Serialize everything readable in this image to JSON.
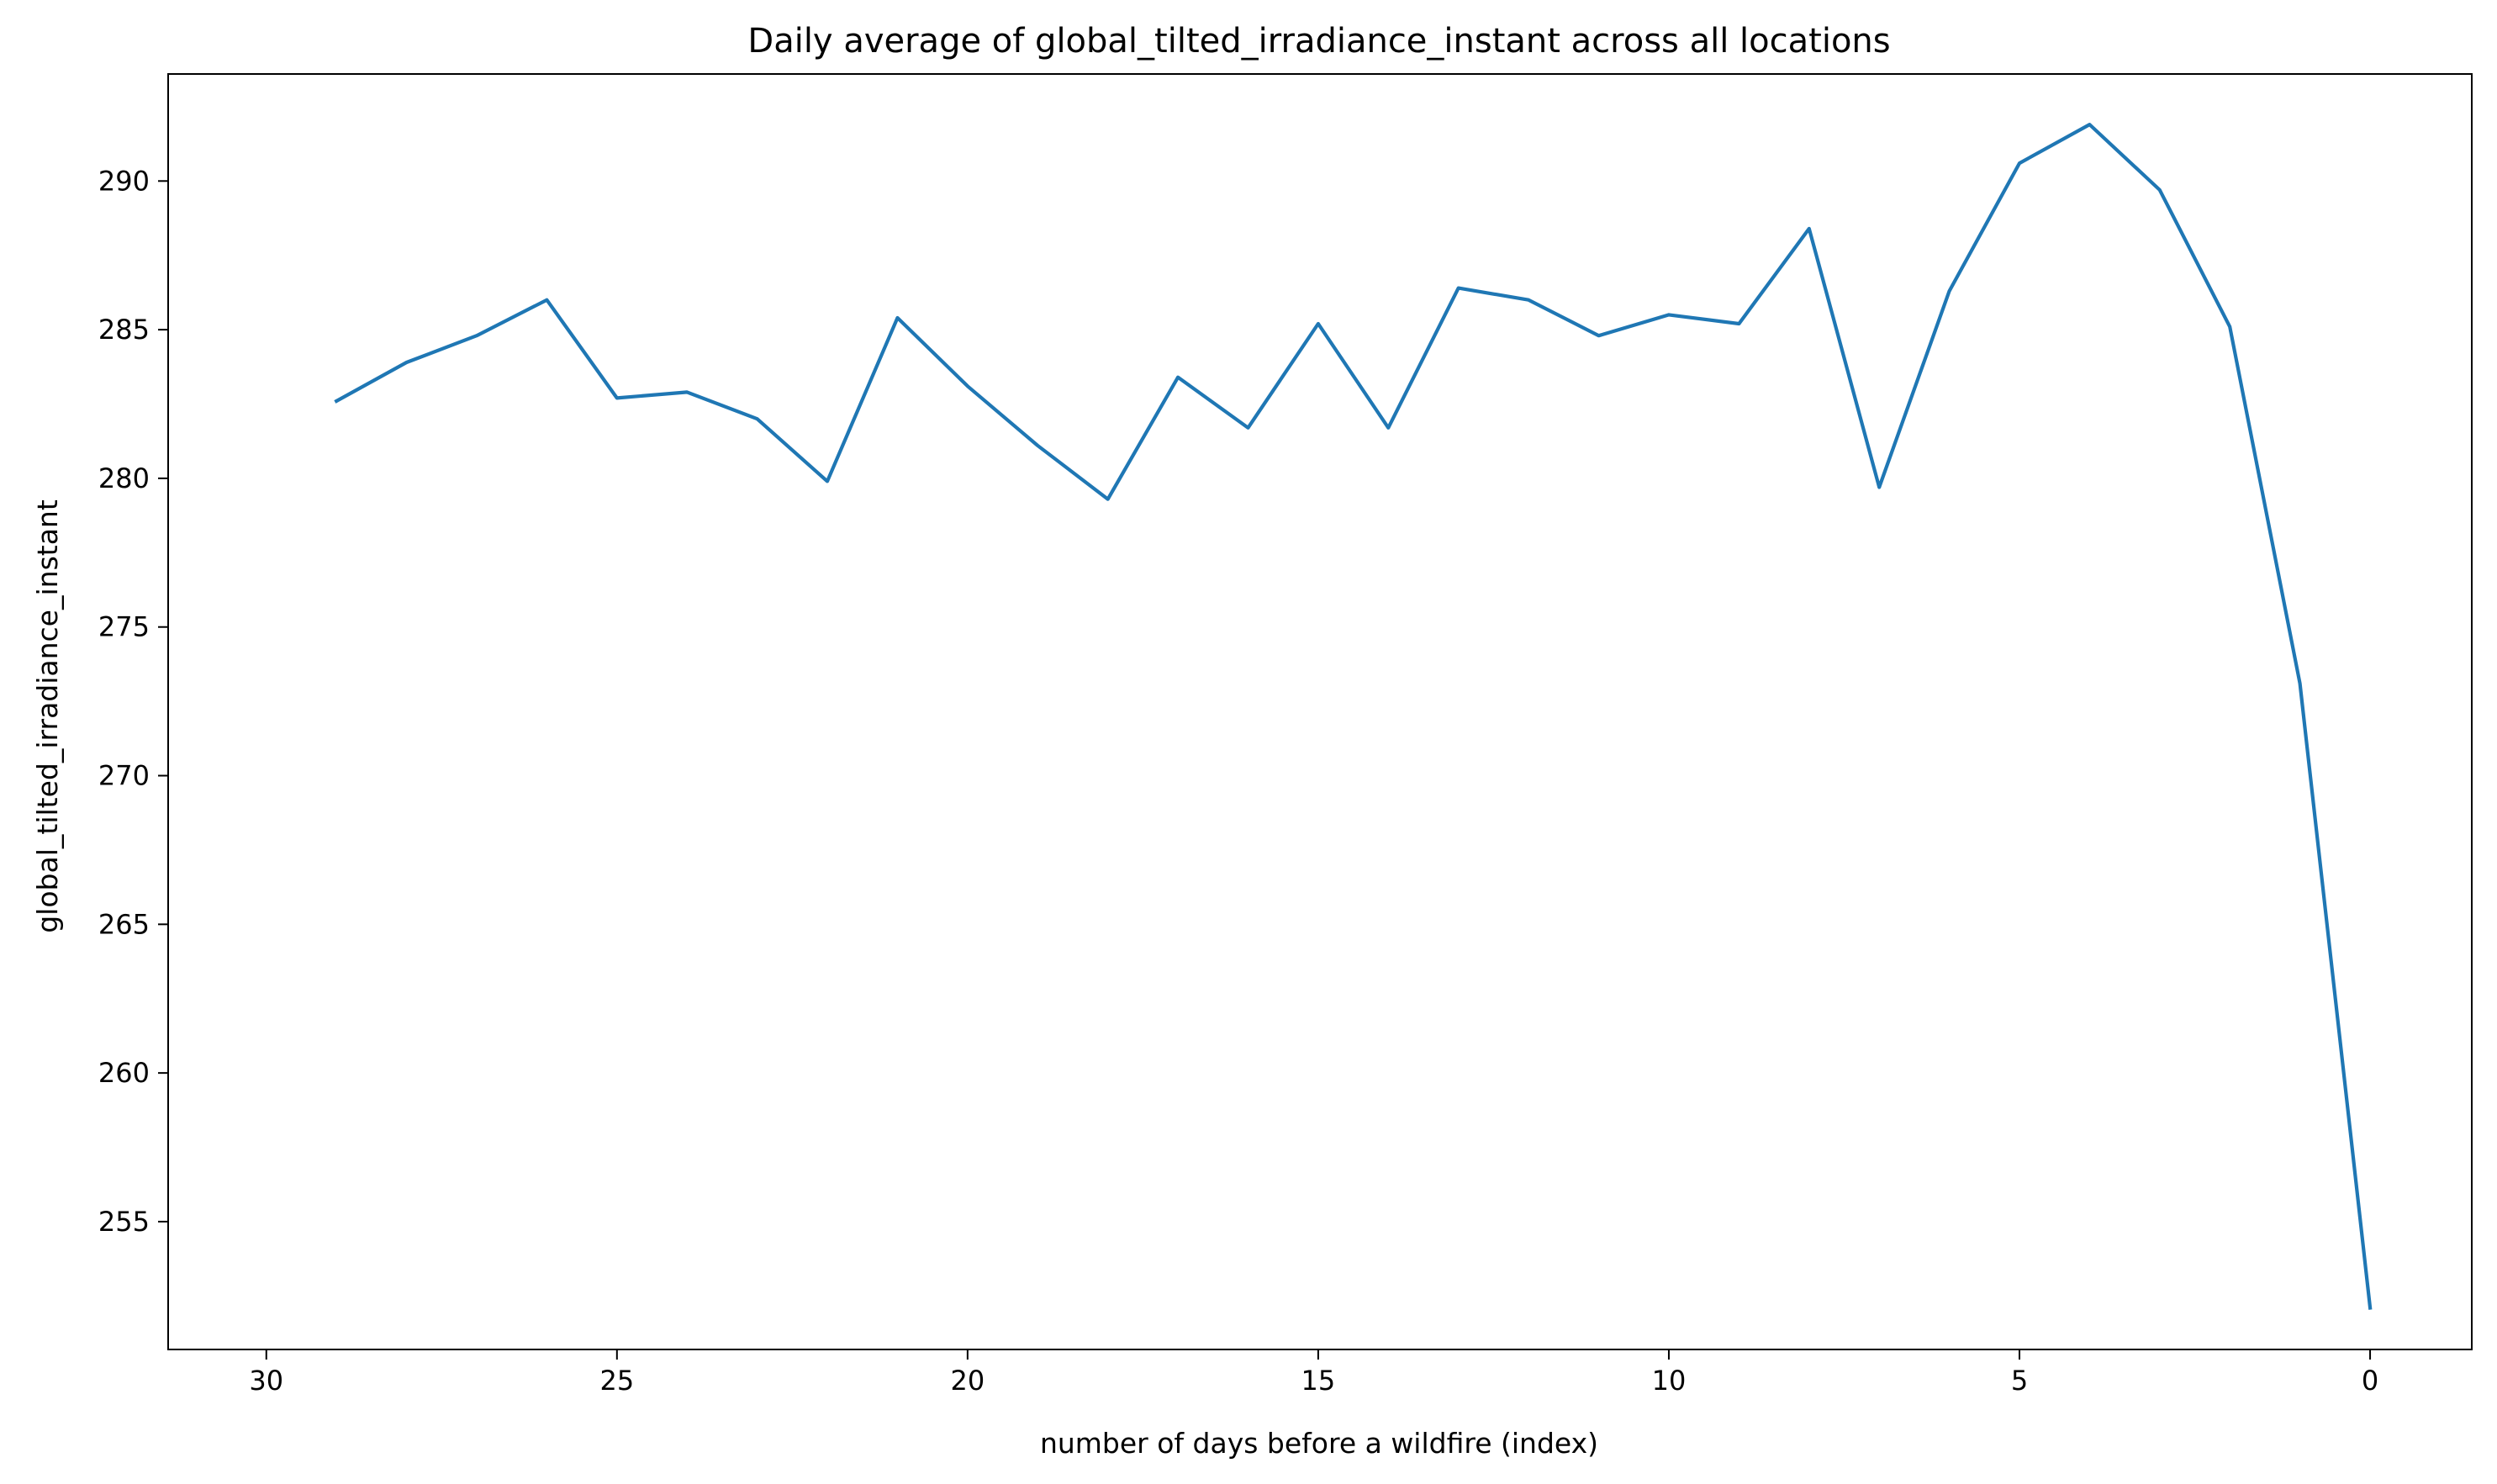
{
  "chart_data": {
    "type": "line",
    "title": "Daily average of global_tilted_irradiance_instant across all locations",
    "xlabel": "number of days before a wildfire (index)",
    "ylabel": "global_tilted_irradiance_instant",
    "x_inverted": true,
    "xlim": [
      31.4,
      -1.45
    ],
    "ylim": [
      250.7,
      293.6
    ],
    "xticks": [
      30,
      25,
      20,
      15,
      10,
      5,
      0
    ],
    "yticks": [
      255,
      260,
      265,
      270,
      275,
      280,
      285,
      290
    ],
    "grid": false,
    "series": [
      {
        "color": "#1f77b4",
        "x": [
          29,
          28,
          27,
          26,
          25,
          24,
          23,
          22,
          21,
          20,
          19,
          18,
          17,
          16,
          15,
          14,
          13,
          12,
          11,
          10,
          9,
          8,
          7,
          6,
          5,
          4,
          3,
          2,
          1,
          0
        ],
        "y": [
          282.6,
          283.9,
          284.8,
          286.0,
          282.7,
          282.9,
          282.0,
          279.9,
          285.4,
          283.1,
          281.1,
          279.3,
          283.4,
          281.7,
          285.2,
          281.7,
          286.4,
          286.0,
          284.8,
          285.5,
          285.2,
          288.4,
          279.7,
          286.3,
          290.6,
          291.9,
          289.7,
          285.1,
          273.1,
          252.1
        ]
      }
    ]
  }
}
